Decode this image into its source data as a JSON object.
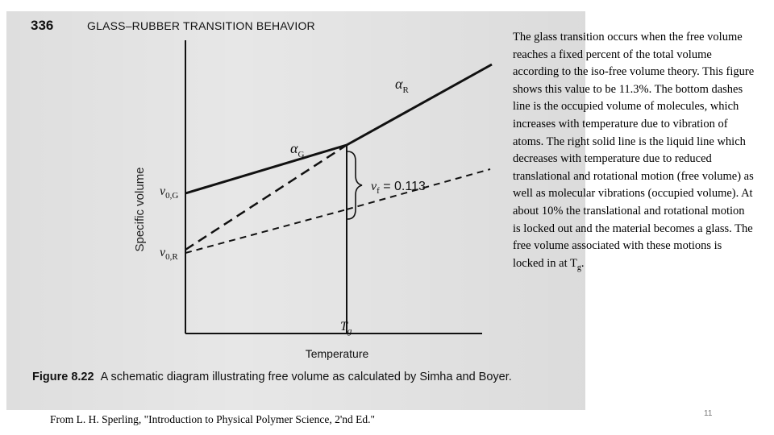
{
  "book_page": {
    "page_number": "336",
    "header": "GLASS–RUBBER TRANSITION BEHAVIOR"
  },
  "diagram": {
    "y_axis_label": "Specific volume",
    "x_axis_label": "Temperature",
    "v0G_label": "v",
    "v0G_sub": "0,G",
    "v0R_label": "v",
    "v0R_sub": "0,R",
    "alpha_R_label": "α",
    "alpha_R_sub": "R",
    "alpha_G_label": "α",
    "alpha_G_sub": "G",
    "vf_label": "v",
    "vf_sub": "f",
    "vf_value": " = 0.113",
    "tg_label": "T",
    "tg_sub": "g"
  },
  "figure_caption": {
    "number": "Figure 8.22",
    "text": "A schematic diagram illustrating free volume as calculated by Simha and Boyer."
  },
  "side_text": {
    "main": "The glass transition occurs when the free volume reaches a fixed percent of the total volume according to the iso-free volume theory. This figure shows this value to be 11.3%.  The bottom dashes line is the occupied volume of molecules, which increases with temperature due to vibration of atoms.  The right solid line is the liquid line which decreases with temperature due to reduced translational and rotational motion (free volume) as well as molecular vibrations (occupied volume).  At about 10% the translational and rotational motion is locked out and the material becomes a glass.  The free volume associated with these motions is locked in at T",
    "tg_sub": "g",
    "end": "."
  },
  "source": "From L. H. Sperling, \"Introduction to Physical Polymer Science, 2'nd Ed.\"",
  "slide_number": "11"
}
